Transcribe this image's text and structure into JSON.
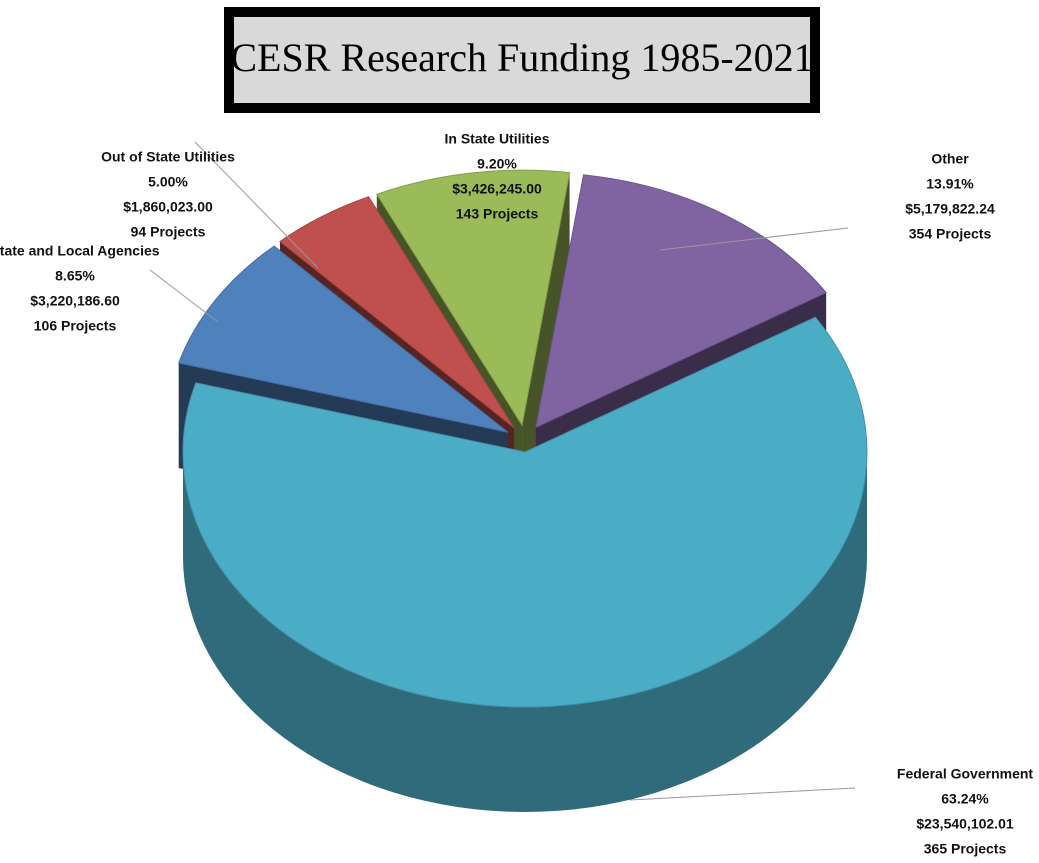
{
  "chart_data": {
    "type": "pie3d",
    "title": "CESR Research Funding 1985-2021",
    "categories": [
      "Other",
      "Federal Government",
      "State and Local Agencies",
      "Out of State Utilities",
      "In State Utilities"
    ],
    "values": [
      13.91,
      63.24,
      8.65,
      5.0,
      9.2
    ],
    "value_labels": [
      "13.91%",
      "63.24%",
      "8.65%",
      "5.00%",
      "9.20%"
    ],
    "amount_labels": [
      "$5,179,822.24",
      "$23,540,102.01",
      "$3,220,186.60",
      "$1,860,023.00",
      "$3,426,245.00"
    ],
    "project_labels": [
      "354 Projects",
      "365 Projects",
      "106 Projects",
      "94 Projects",
      "143 Projects"
    ],
    "colors": [
      "#8064a2",
      "#4bacc6",
      "#4f81bd",
      "#c0504d",
      "#9bbb59"
    ]
  }
}
